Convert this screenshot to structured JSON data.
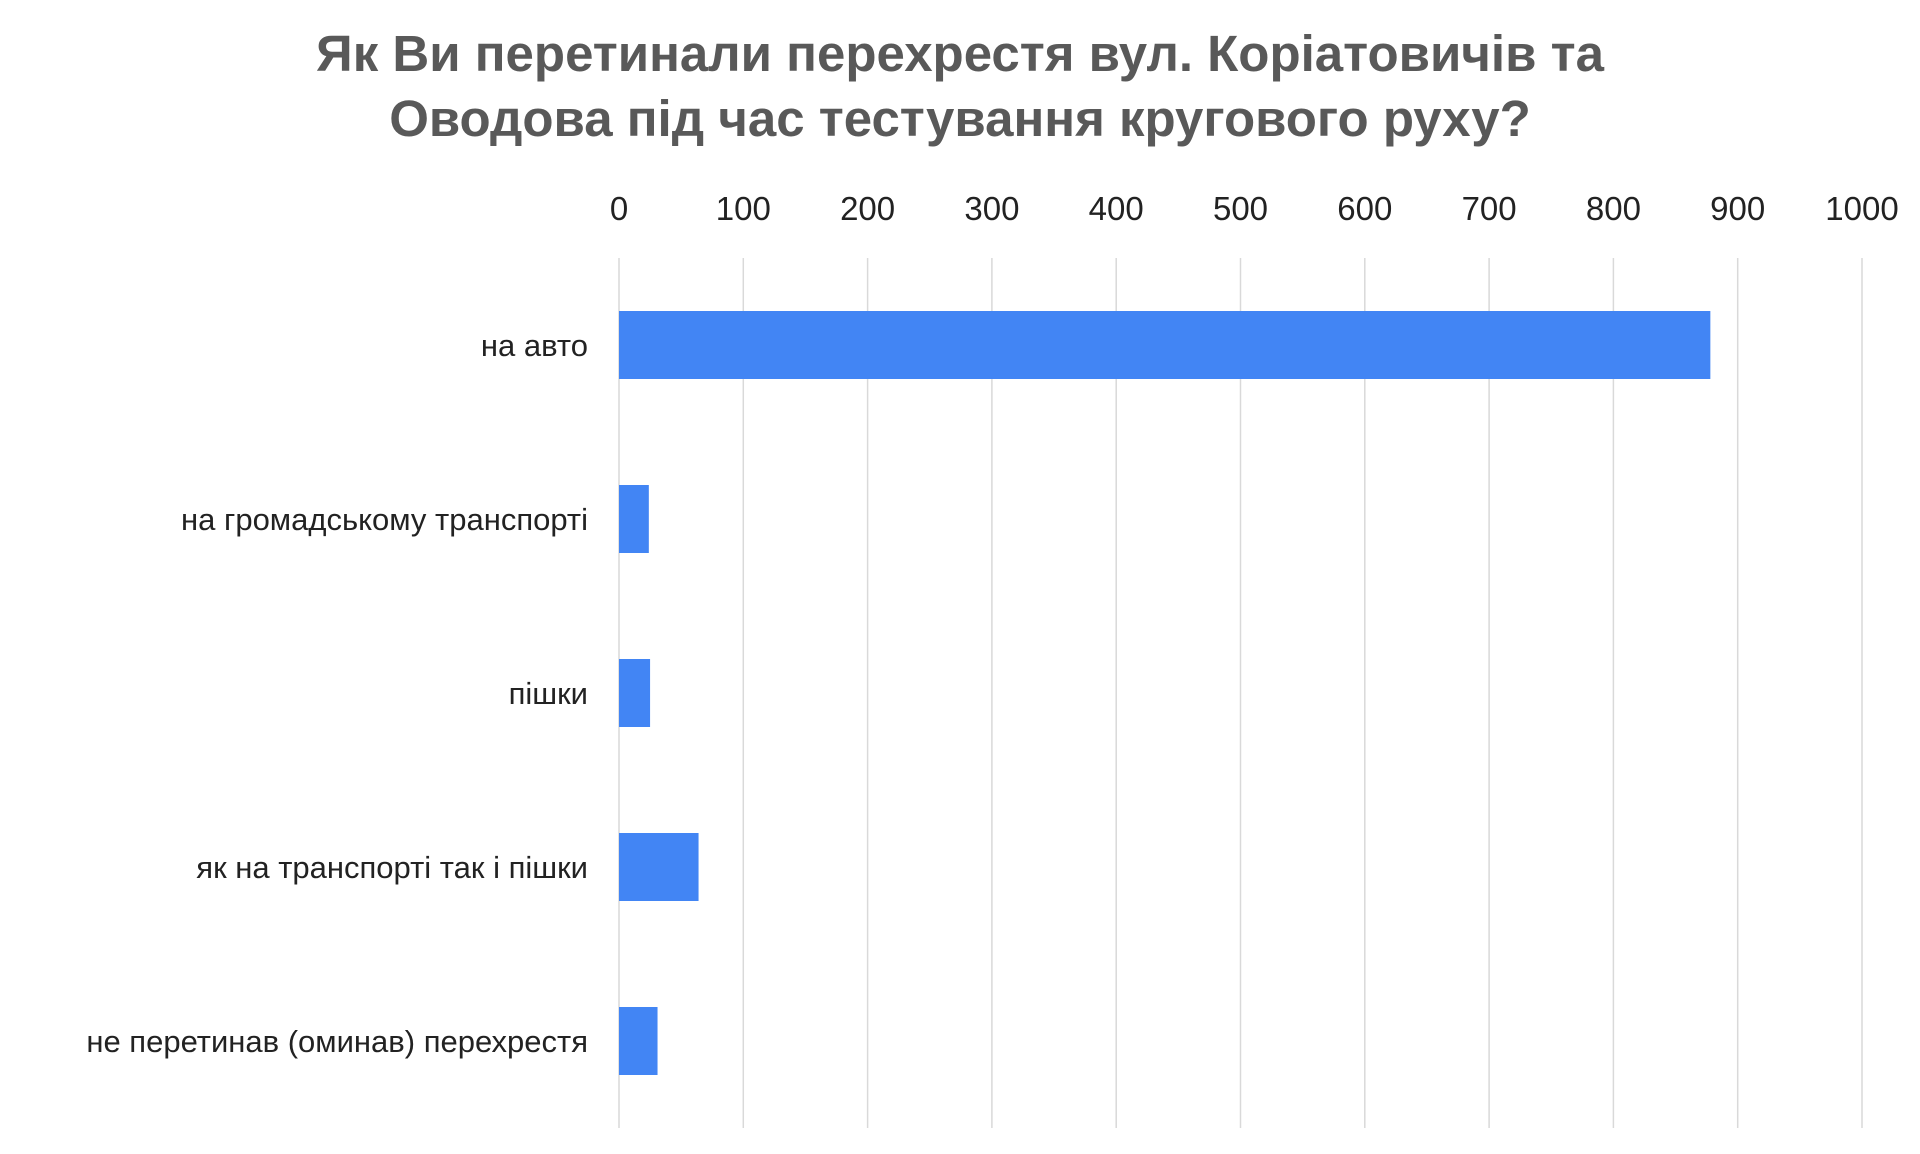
{
  "chart_data": {
    "type": "bar",
    "orientation": "horizontal",
    "title_lines": [
      "Як Ви перетинали перехрестя вул. Коріатовичів та",
      "Оводова  під час тестування кругового руху?"
    ],
    "categories": [
      "на авто",
      "на громадському транспорті",
      "пішки",
      "як на транспорті так і пішки",
      "не перетинав (оминав) перехрестя"
    ],
    "values": [
      878,
      24,
      25,
      64,
      31
    ],
    "xlim": [
      0,
      1000
    ],
    "x_ticks": [
      "0",
      "100",
      "200",
      "300",
      "400",
      "500",
      "600",
      "700",
      "800",
      "900",
      "1000"
    ],
    "x_axis_position": "top",
    "grid": "vertical",
    "legend": "none",
    "bar_color": "#4285f4"
  }
}
